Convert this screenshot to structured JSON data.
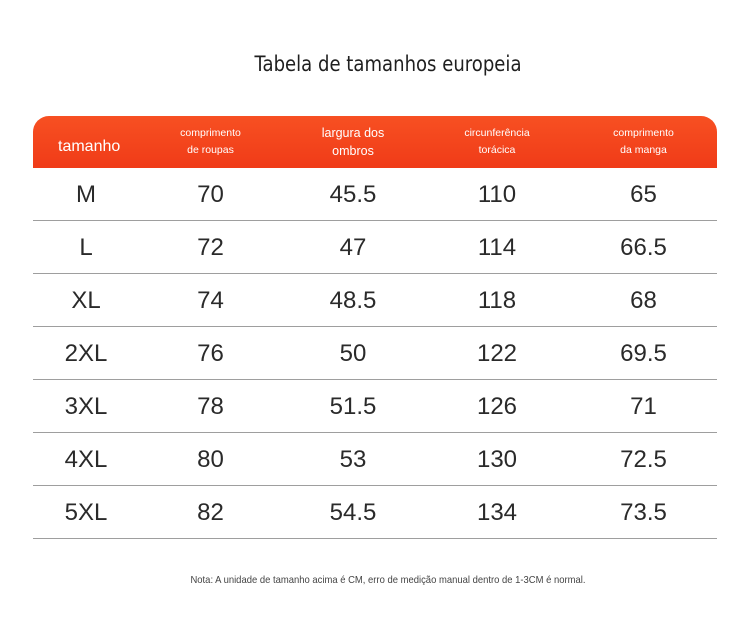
{
  "title": "Tabela de tamanhos europeia",
  "headers": {
    "size": "tamanho",
    "length": [
      "comprimento",
      "de roupas"
    ],
    "shoulder": [
      "largura dos",
      "ombros"
    ],
    "chest": [
      "circunferência",
      "torácica"
    ],
    "sleeve": [
      "comprimento",
      "da manga"
    ]
  },
  "rows": [
    {
      "size": "M",
      "length": "70",
      "shoulder": "45.5",
      "chest": "110",
      "sleeve": "65"
    },
    {
      "size": "L",
      "length": "72",
      "shoulder": "47",
      "chest": "114",
      "sleeve": "66.5"
    },
    {
      "size": "XL",
      "length": "74",
      "shoulder": "48.5",
      "chest": "118",
      "sleeve": "68"
    },
    {
      "size": "2XL",
      "length": "76",
      "shoulder": "50",
      "chest": "122",
      "sleeve": "69.5"
    },
    {
      "size": "3XL",
      "length": "78",
      "shoulder": "51.5",
      "chest": "126",
      "sleeve": "71"
    },
    {
      "size": "4XL",
      "length": "80",
      "shoulder": "53",
      "chest": "130",
      "sleeve": "72.5"
    },
    {
      "size": "5XL",
      "length": "82",
      "shoulder": "54.5",
      "chest": "134",
      "sleeve": "73.5"
    }
  ],
  "note": "Nota: A unidade de tamanho acima é CM, erro de medição manual dentro de 1-3CM é normal.",
  "colors": {
    "header_bg": "#f2441c",
    "header_text": "#ffffff",
    "row_divider": "#9e9e9e"
  }
}
